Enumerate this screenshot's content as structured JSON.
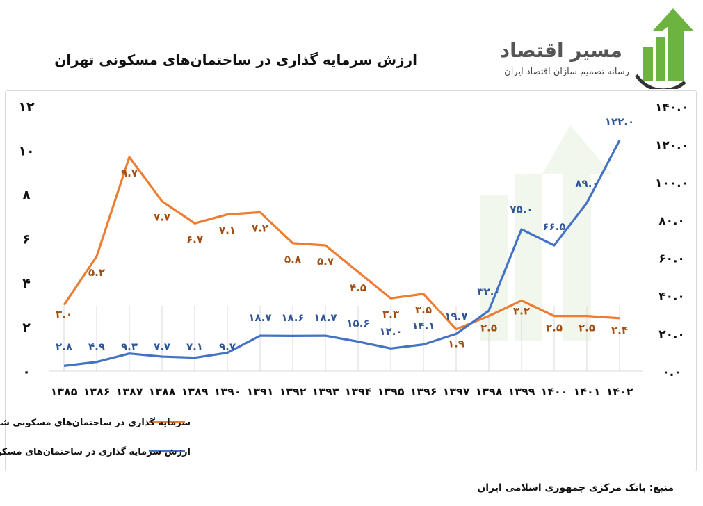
{
  "page": {
    "title": "ارزش سرمایه گذاری در ساختمان‌های مسکونی تهران",
    "source": "منبع: بانک مرکزی جمهوری اسلامی ایران"
  },
  "logo": {
    "name": "مسیر اقتصاد",
    "tagline": "رسانه تصمیم سازان اقتصاد ایران",
    "brand_color": "#6db33f"
  },
  "chart_data": {
    "type": "line",
    "title": "ارزش سرمایه گذاری در ساختمان‌های مسکونی تهران",
    "categories": [
      "۱۳۸۵",
      "۱۳۸۶",
      "۱۳۸۷",
      "۱۳۸۸",
      "۱۳۸۹",
      "۱۳۹۰",
      "۱۳۹۱",
      "۱۳۹۲",
      "۱۳۹۳",
      "۱۳۹۴",
      "۱۳۹۵",
      "۱۳۹۶",
      "۱۳۹۷",
      "۱۳۹۸",
      "۱۳۹۹",
      "۱۴۰۰",
      "۱۴۰۱",
      "۱۴۰۲"
    ],
    "series": [
      {
        "name": "سرمایه گذاری در ساختمان‌های مسکونی شهری تهران به دلار بازار غیر رسمی (میلیارد دلار)",
        "axis": "left",
        "color": "#ed7d31",
        "values": [
          3.0,
          5.2,
          9.7,
          7.7,
          6.7,
          7.1,
          7.2,
          5.8,
          5.7,
          4.5,
          3.3,
          3.5,
          1.9,
          2.5,
          3.2,
          2.5,
          2.5,
          2.4
        ],
        "labels": [
          "۳.۰",
          "۵.۲",
          "۹.۷",
          "۷.۷",
          "۶.۷",
          "۷.۱",
          "۷.۲",
          "۵.۸",
          "۵.۷",
          "۴.۵",
          "۳.۳",
          "۳.۵",
          "۱.۹",
          "۲.۵",
          "۳.۲",
          "۲.۵",
          "۲.۵",
          "۲.۴"
        ]
      },
      {
        "name": "ارزش سرمایه گذاری در ساختمان‌های مسکونی شهری تهران (همت)",
        "axis": "right",
        "color": "#4472c4",
        "values": [
          2.8,
          4.9,
          9.3,
          7.7,
          7.1,
          9.7,
          18.7,
          18.6,
          18.7,
          15.6,
          12.0,
          14.1,
          19.7,
          32.0,
          75.0,
          66.5,
          89.0,
          122.0
        ],
        "labels": [
          "۲.۸",
          "۴.۹",
          "۹.۳",
          "۷.۷",
          "۷.۱",
          "۹.۷",
          "۱۸.۷",
          "۱۸.۶",
          "۱۸.۷",
          "۱۵.۶",
          "۱۲.۰",
          "۱۴.۱",
          "۱۹.۷",
          "۳۲.۰",
          "۷۵.۰",
          "۶۶.۵",
          "۸۹.۰",
          "۱۲۲.۰"
        ]
      }
    ],
    "y_left": {
      "ylim": [
        0,
        12
      ],
      "ticks": [
        "۰",
        "۲",
        "۴",
        "۶",
        "۸",
        "۱۰",
        "۱۲"
      ]
    },
    "y_right": {
      "ylim": [
        0,
        140
      ],
      "ticks": [
        "۰.۰",
        "۲۰.۰",
        "۴۰.۰",
        "۶۰.۰",
        "۸۰.۰",
        "۱۰۰.۰",
        "۱۲۰.۰",
        "۱۴۰.۰"
      ]
    },
    "grid": "vertical",
    "legend_position": "bottom"
  }
}
